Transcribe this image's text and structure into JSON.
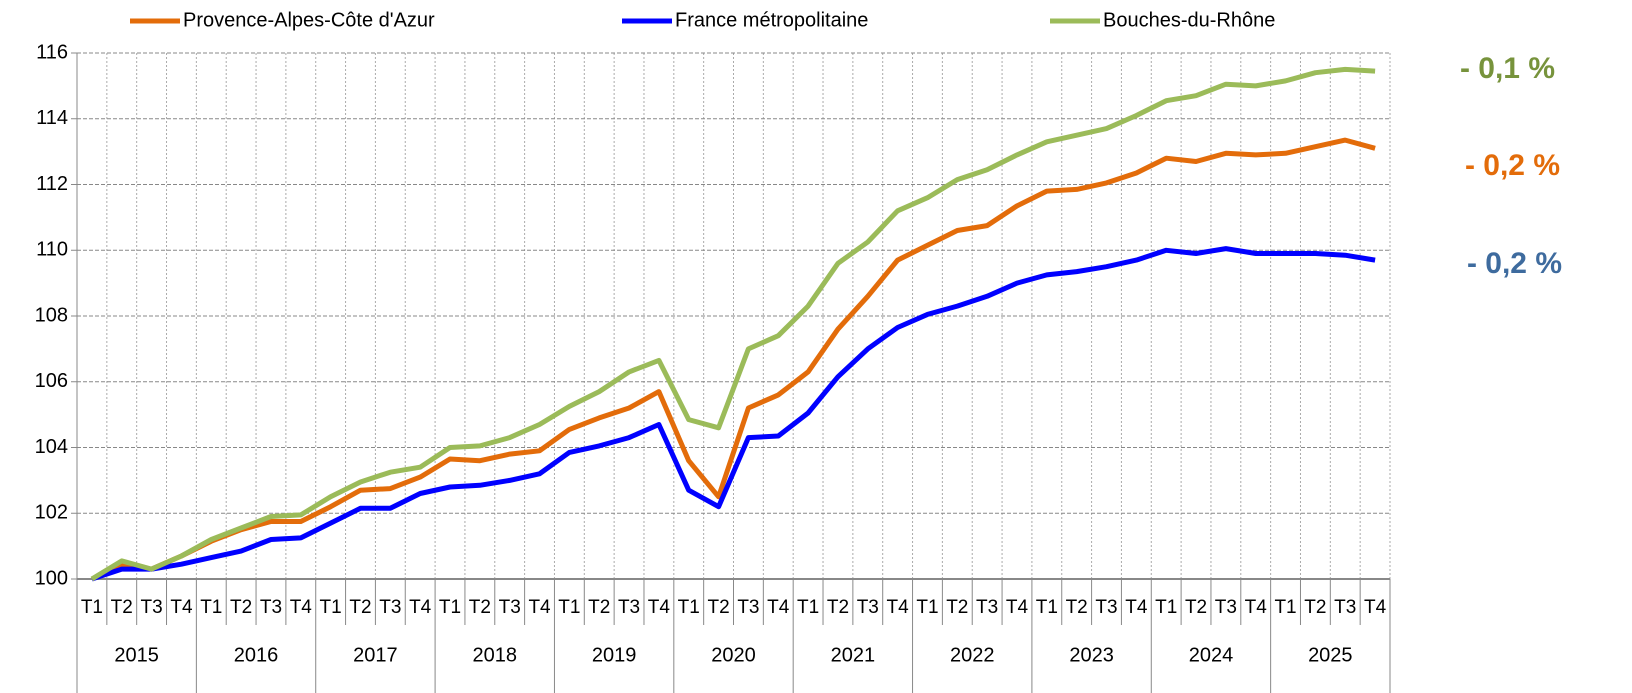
{
  "chart_data": {
    "type": "line",
    "categories": [
      "T1",
      "T2",
      "T3",
      "T4",
      "T1",
      "T2",
      "T3",
      "T4",
      "T1",
      "T2",
      "T3",
      "T4",
      "T1",
      "T2",
      "T3",
      "T4",
      "T1",
      "T2",
      "T3",
      "T4",
      "T1",
      "T2",
      "T3",
      "T4",
      "T1",
      "T2",
      "T3",
      "T4",
      "T1",
      "T2",
      "T3",
      "T4",
      "T1",
      "T2",
      "T3",
      "T4",
      "T1",
      "T2",
      "T3",
      "T4",
      "T1",
      "T2",
      "T3",
      "T4"
    ],
    "years": [
      "2015",
      "2016",
      "2017",
      "2018",
      "2019",
      "2020",
      "2021",
      "2022",
      "2023",
      "2024",
      "2025"
    ],
    "series": [
      {
        "name": "Provence-Alpes-Côte d'Azur",
        "color": "#e36c0a",
        "values": [
          100.0,
          100.4,
          100.3,
          100.7,
          101.15,
          101.5,
          101.75,
          101.75,
          102.2,
          102.7,
          102.75,
          103.1,
          103.65,
          103.6,
          103.8,
          103.9,
          104.55,
          104.9,
          105.2,
          105.7,
          103.6,
          102.5,
          105.2,
          105.6,
          106.3,
          107.6,
          108.6,
          109.7,
          110.15,
          110.6,
          110.75,
          111.35,
          111.8,
          111.85,
          112.05,
          112.35,
          112.8,
          112.7,
          112.95,
          112.9,
          112.95,
          113.15,
          113.35,
          113.1
        ]
      },
      {
        "name": "France métropolitaine",
        "color": "#0000ff",
        "values": [
          100.0,
          100.3,
          100.3,
          100.45,
          100.65,
          100.85,
          101.2,
          101.25,
          101.7,
          102.15,
          102.15,
          102.6,
          102.8,
          102.85,
          103.0,
          103.2,
          103.85,
          104.05,
          104.3,
          104.7,
          102.7,
          102.2,
          104.3,
          104.35,
          105.05,
          106.15,
          107.0,
          107.65,
          108.05,
          108.3,
          108.6,
          109.0,
          109.25,
          109.35,
          109.5,
          109.7,
          110.0,
          109.9,
          110.05,
          109.9,
          109.9,
          109.9,
          109.85,
          109.7
        ]
      },
      {
        "name": "Bouches-du-Rhône",
        "color": "#9bbb59",
        "values": [
          100.0,
          100.55,
          100.3,
          100.7,
          101.2,
          101.55,
          101.9,
          101.95,
          102.5,
          102.95,
          103.25,
          103.4,
          104.0,
          104.05,
          104.3,
          104.7,
          105.25,
          105.7,
          106.3,
          106.65,
          104.85,
          104.6,
          107.0,
          107.4,
          108.3,
          109.6,
          110.25,
          111.2,
          111.6,
          112.15,
          112.45,
          112.9,
          113.3,
          113.5,
          113.7,
          114.1,
          114.55,
          114.7,
          115.05,
          115.0,
          115.15,
          115.4,
          115.5,
          115.45
        ]
      }
    ],
    "ylim": [
      100,
      116
    ],
    "yticks": [
      100,
      102,
      104,
      106,
      108,
      110,
      112,
      114,
      116
    ],
    "grid": true,
    "annotations": [
      {
        "text": "- 0,1 %",
        "color": "#77933c"
      },
      {
        "text": "- 0,2 %",
        "color": "#e36c0a"
      },
      {
        "text": "- 0,2 %",
        "color": "#3e6b9e"
      }
    ]
  }
}
